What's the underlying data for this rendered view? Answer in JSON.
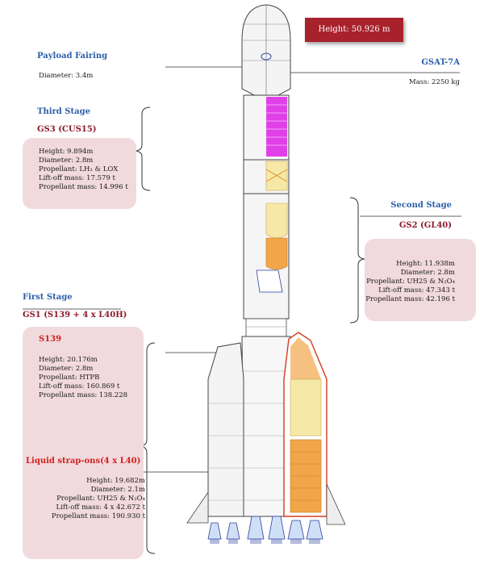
{
  "height_banner": "Height: 50.926 m",
  "payload_fairing": {
    "title": "Payload Fairing",
    "diameter": "Diameter: 3.4m"
  },
  "gsat": {
    "title": "GSAT-7A",
    "mass": "Mass: 2250 kg"
  },
  "third_stage": {
    "title": "Third Stage",
    "code": "GS3 (CUS15)",
    "height": "Height: 9.894m",
    "diameter": "Diameter: 2.8m",
    "propellant": "Propellant: LH₂ & LOX",
    "liftoff": "Lift-off mass: 17.579 t",
    "prop_mass": "Propellant mass: 14.996 t"
  },
  "second_stage": {
    "title": "Second Stage",
    "code": "GS2 (GL40)",
    "height": "Height: 11.938m",
    "diameter": "Diameter: 2.8m",
    "propellant": "Propellant: UH25 & N₂O₄",
    "liftoff": "Lift-off mass: 47.343 t",
    "prop_mass": "Propellant mass: 42.196 t"
  },
  "first_stage": {
    "title": "First Stage",
    "code": "GS1 (S139 + 4 x L40H)"
  },
  "s139": {
    "title": "S139",
    "height": "Height: 20.176m",
    "diameter": "Diameter: 2.8m",
    "propellant": "Propellant: HTPB",
    "liftoff": "Lift-off mass: 160.869 t",
    "prop_mass": "Propellant mass: 138.228"
  },
  "strapons": {
    "title": "Liquid strap-ons(4 x L40)",
    "height": "Height: 19.682m",
    "diameter": "Diameter: 2.1m",
    "propellant": "Propellant: UH25 & N₂O₄",
    "liftoff": "Lift-off mass: 4 x 42.672 t",
    "prop_mass": "Propellant mass: 190.930 t"
  },
  "colors": {
    "blue_heading": "#2b5fa8",
    "maroon_heading": "#8b1a2a",
    "red_heading": "#d42020",
    "info_box": "#f1dadd",
    "banner": "#a8222c",
    "cryo_stage": "#e040e8",
    "fuel_tank": "#f6e9a8",
    "orange_tank": "#f2a64a"
  }
}
